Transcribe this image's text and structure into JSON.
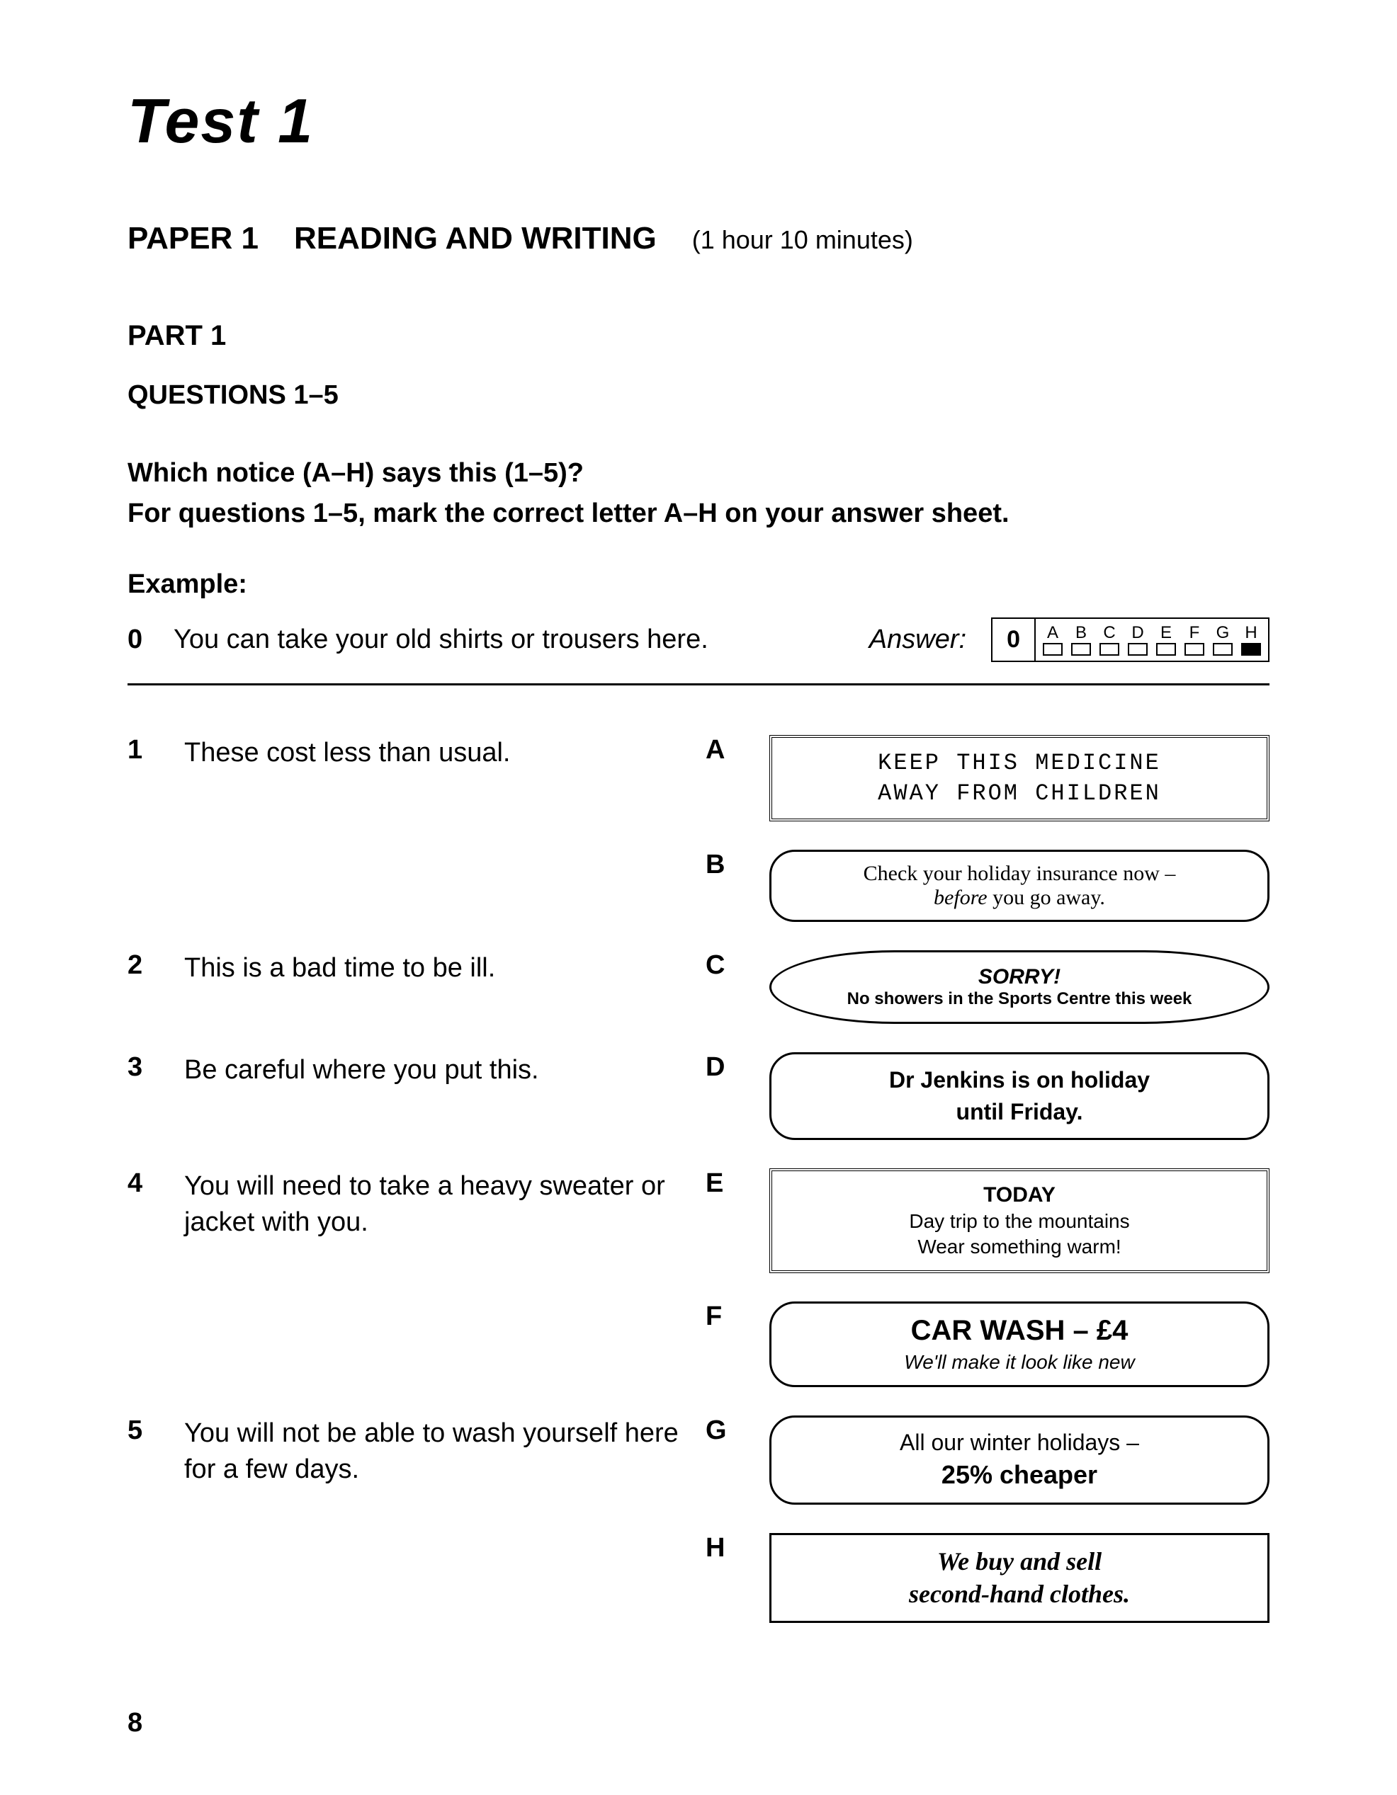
{
  "test_title": "Test 1",
  "paper": {
    "label": "PAPER 1",
    "title": "READING AND WRITING",
    "time": "(1 hour 10 minutes)"
  },
  "part_label": "PART 1",
  "questions_label": "QUESTIONS 1–5",
  "instruction_line1": "Which notice (A–H) says this (1–5)?",
  "instruction_line2": "For questions 1–5, mark the correct letter A–H on your answer sheet.",
  "example_label": "Example:",
  "example": {
    "num": "0",
    "text": "You can take your old shirts or trousers here.",
    "answer_label": "Answer:",
    "answer_num": "0",
    "letters": {
      "a": "A",
      "b": "B",
      "c": "C",
      "d": "D",
      "e": "E",
      "f": "F",
      "g": "G",
      "h": "H"
    }
  },
  "questions": {
    "q1": {
      "num": "1",
      "text": "These cost less than usual."
    },
    "q2": {
      "num": "2",
      "text": "This is a bad time to be ill."
    },
    "q3": {
      "num": "3",
      "text": "Be careful where you put this."
    },
    "q4": {
      "num": "4",
      "text": "You will need to take a heavy sweater or jacket with you."
    },
    "q5": {
      "num": "5",
      "text": "You will not be able to wash yourself here for a few days."
    }
  },
  "notices": {
    "a": {
      "letter": "A",
      "line1": "KEEP THIS MEDICINE",
      "line2": "AWAY FROM CHILDREN"
    },
    "b": {
      "letter": "B",
      "line1": "Check your holiday insurance now –",
      "line2_pre": "before",
      "line2_post": " you go away."
    },
    "c": {
      "letter": "C",
      "line1": "SORRY!",
      "line2": "No showers in the Sports Centre this week"
    },
    "d": {
      "letter": "D",
      "line1": "Dr Jenkins is on holiday",
      "line2": "until Friday."
    },
    "e": {
      "letter": "E",
      "line1": "TODAY",
      "line2": "Day trip to the mountains",
      "line3": "Wear something warm!"
    },
    "f": {
      "letter": "F",
      "line1": "CAR WASH – £4",
      "line2": "We'll make it look like new"
    },
    "g": {
      "letter": "G",
      "line1": "All our winter holidays –",
      "line2": "25% cheaper"
    },
    "h": {
      "letter": "H",
      "line1": "We buy and sell",
      "line2": "second-hand clothes."
    }
  },
  "page_number": "8"
}
